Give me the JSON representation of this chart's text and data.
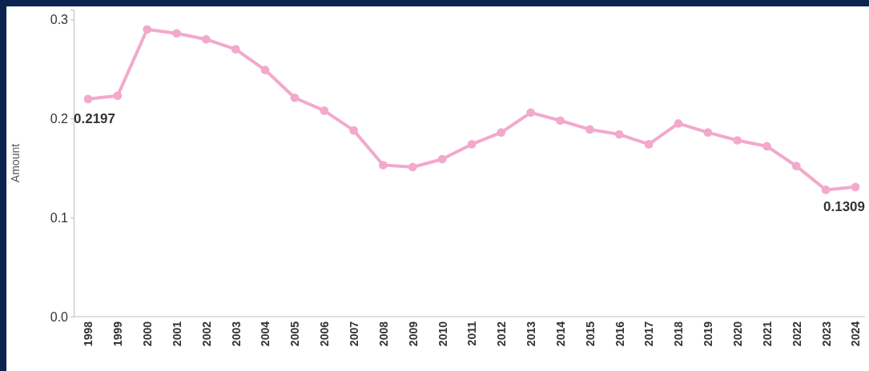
{
  "chart_data": {
    "type": "line",
    "ylabel": "Amount",
    "categories": [
      "1998",
      "1999",
      "2000",
      "2001",
      "2002",
      "2003",
      "2004",
      "2005",
      "2006",
      "2007",
      "2008",
      "2009",
      "2010",
      "2011",
      "2012",
      "2013",
      "2014",
      "2015",
      "2016",
      "2017",
      "2018",
      "2019",
      "2020",
      "2021",
      "2022",
      "2023",
      "2024"
    ],
    "series": [
      {
        "color": "#f2a9cc",
        "values": [
          0.2197,
          0.223,
          0.29,
          0.286,
          0.28,
          0.27,
          0.249,
          0.221,
          0.208,
          0.188,
          0.153,
          0.151,
          0.159,
          0.174,
          0.186,
          0.206,
          0.198,
          0.189,
          0.184,
          0.174,
          0.195,
          0.186,
          0.178,
          0.172,
          0.152,
          0.128,
          0.1309
        ],
        "value_labels": [
          "0.2197",
          null,
          null,
          null,
          null,
          null,
          null,
          null,
          null,
          null,
          null,
          null,
          null,
          null,
          null,
          null,
          null,
          null,
          null,
          null,
          null,
          null,
          null,
          null,
          null,
          null,
          "0.1309"
        ]
      }
    ],
    "ylim": [
      0,
      0.31
    ],
    "yticks": [
      {
        "value": 0,
        "label": "0.0"
      },
      0.1,
      0.2,
      0.3
    ],
    "marker": "circle",
    "grid": false
  }
}
